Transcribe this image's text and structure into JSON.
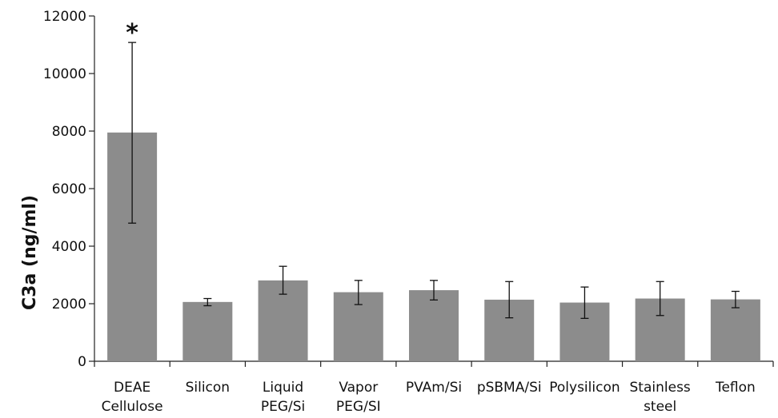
{
  "chart_data": {
    "type": "bar",
    "title": "",
    "xlabel": "",
    "ylabel": "C3a  (ng/ml)",
    "ylim": [
      0,
      12000
    ],
    "yticks": [
      0,
      2000,
      4000,
      6000,
      8000,
      10000,
      12000
    ],
    "grid": false,
    "legend": "none",
    "bar_color": "#8c8c8c",
    "categories": [
      [
        "DEAE",
        "Cellulose"
      ],
      [
        "Silicon"
      ],
      [
        "Liquid",
        "PEG/Si"
      ],
      [
        "Vapor",
        "PEG/SI"
      ],
      [
        "PVAm/Si"
      ],
      [
        "pSBMA/Si"
      ],
      [
        "Polysilicon"
      ],
      [
        "Stainless",
        "steel"
      ],
      [
        "Teflon"
      ]
    ],
    "values": [
      7950,
      2060,
      2810,
      2400,
      2470,
      2140,
      2040,
      2180,
      2150
    ],
    "error_low": [
      4800,
      1930,
      2330,
      1970,
      2130,
      1510,
      1490,
      1590,
      1860
    ],
    "error_high": [
      11080,
      2180,
      3300,
      2810,
      2810,
      2770,
      2580,
      2770,
      2430
    ],
    "annotations": [
      {
        "category_index": 0,
        "text": "*"
      }
    ]
  }
}
